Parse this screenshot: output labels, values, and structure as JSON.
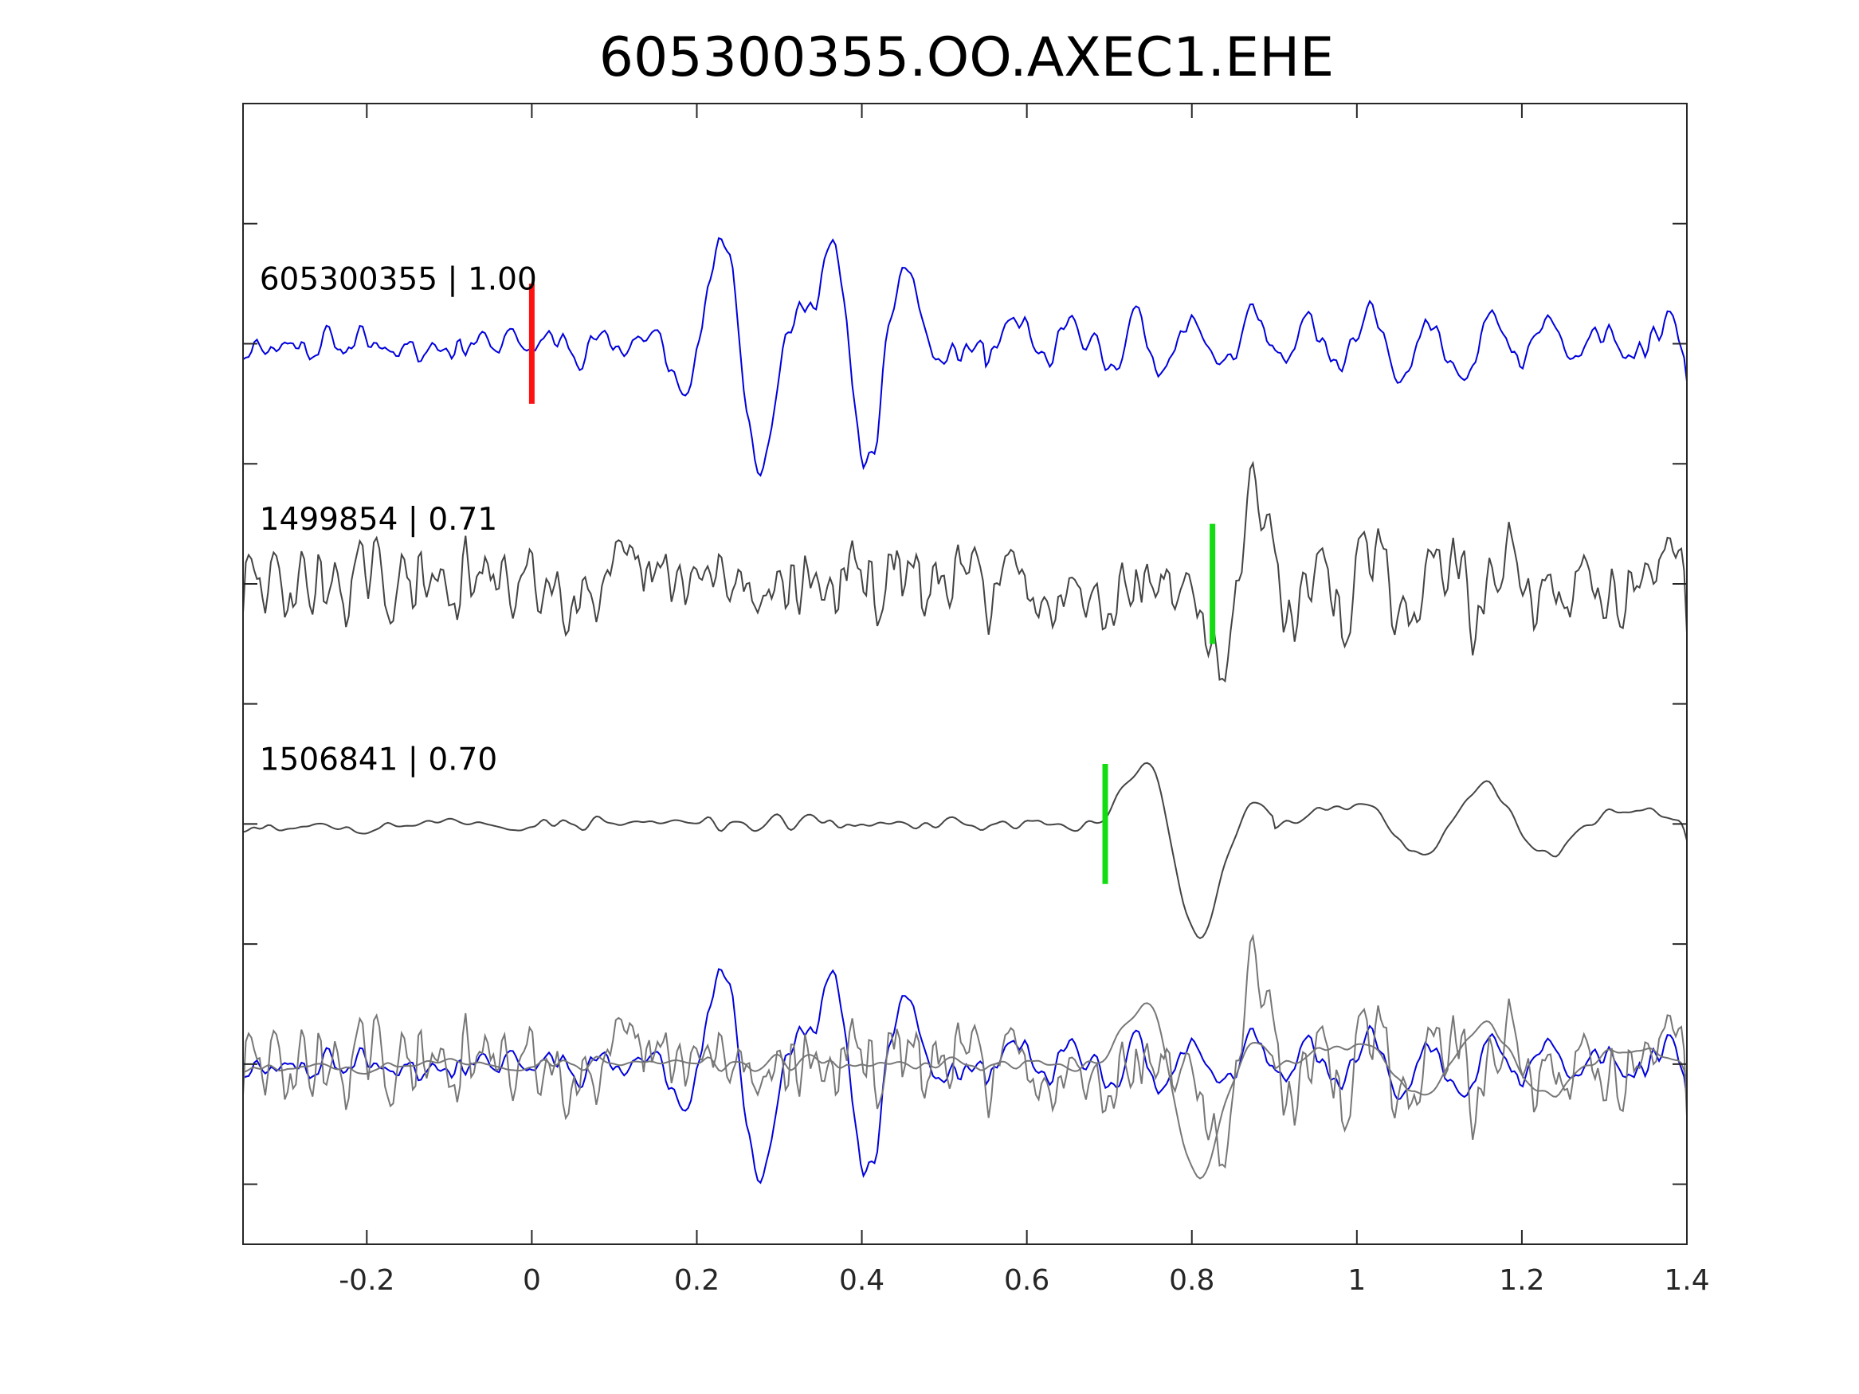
{
  "chart_data": {
    "type": "line",
    "title": "605300355.OO.AXEC1.EHE",
    "xlabel": "",
    "ylabel": "",
    "xlim": [
      -0.35,
      1.4
    ],
    "xticks": [
      -0.2,
      0,
      0.2,
      0.4,
      0.6,
      0.8,
      1,
      1.2,
      1.4
    ],
    "xtick_labels": [
      "-0.2",
      "0",
      "0.2",
      "0.4",
      "0.6",
      "0.8",
      "1",
      "1.2",
      "1.4"
    ],
    "ylim": [
      -1.5,
      8
    ],
    "yticks": [
      -1,
      0,
      1,
      2,
      3,
      4,
      5,
      6,
      7
    ],
    "grid": false,
    "legend": "none",
    "colors": {
      "primary_trace": "#0000dd",
      "secondary_trace": "#444444",
      "overlay_gray": "#777777",
      "reference_pick": "#ff1111",
      "match_pick": "#11dd11",
      "axes": "#262626"
    },
    "series": [
      {
        "label": "605300355 | 1.00",
        "offset": 6,
        "color": "blue",
        "pick_time": 0.0,
        "pick_color": "red",
        "amplitude_scale": 1.0,
        "waveform_kind": "primary"
      },
      {
        "label": "1499854 | 0.71",
        "offset": 4,
        "color": "darkgray",
        "pick_time": 0.825,
        "pick_color": "green",
        "amplitude_scale": 0.85,
        "waveform_kind": "noisy"
      },
      {
        "label": "1506841 | 0.70",
        "offset": 2,
        "color": "darkgray",
        "pick_time": 0.695,
        "pick_color": "green",
        "amplitude_scale": 1.0,
        "waveform_kind": "smooth"
      }
    ],
    "overlay": {
      "offset": 0,
      "components": [
        "primary",
        "noisy",
        "smooth"
      ]
    }
  }
}
